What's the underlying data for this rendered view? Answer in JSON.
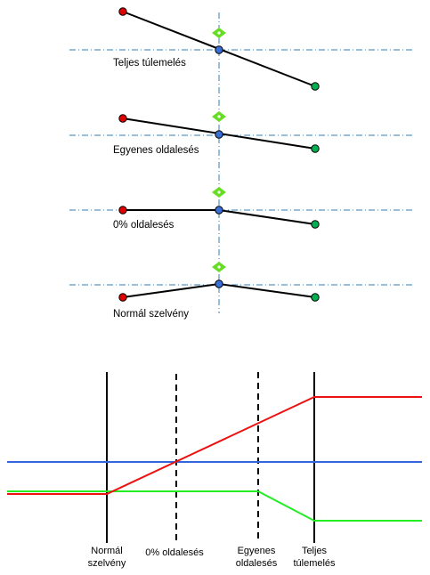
{
  "states": [
    {
      "label": "Teljes túlemelés"
    },
    {
      "label": "Egyenes oldalesés"
    },
    {
      "label": "0% oldalesés"
    },
    {
      "label": "Normál szelvény"
    }
  ],
  "transition_labels": [
    {
      "lines": [
        "Normál",
        "szelvény"
      ]
    },
    {
      "lines": [
        "0% oldalesés"
      ]
    },
    {
      "lines": [
        "Egyenes",
        "oldalesés"
      ]
    },
    {
      "lines": [
        "Teljes",
        "túlemelés"
      ]
    }
  ],
  "colors": {
    "left_edge": "#e00000",
    "right_edge": "#00b050",
    "centerline": "#3a6fd8",
    "axis_dashdot": "#3a7fb0",
    "pivot_marker": "#66dd22",
    "profile_line": "#000000",
    "red_line": "#ee1111",
    "green_line": "#22ee22",
    "blue_line": "#3366dd"
  }
}
